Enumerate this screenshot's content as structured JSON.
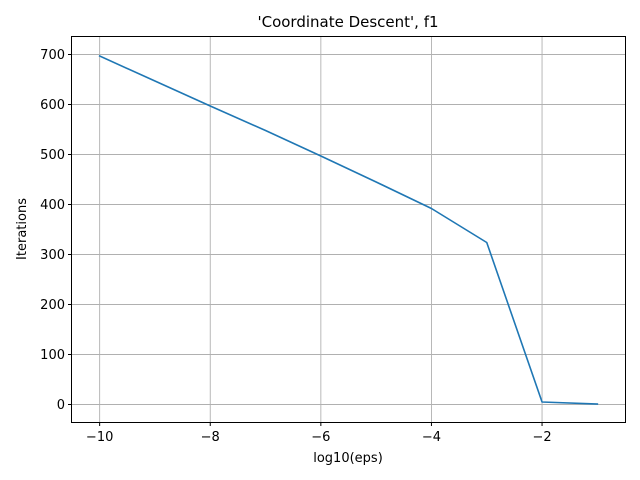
{
  "chart_data": {
    "type": "line",
    "title": "'Coordinate Descent', f1",
    "xlabel": "log10(eps)",
    "ylabel": "Iterations",
    "xlim": [
      -10.5,
      -0.5
    ],
    "ylim": [
      -35,
      735
    ],
    "x_ticks": [
      -10,
      -8,
      -6,
      -4,
      -2
    ],
    "y_ticks": [
      0,
      100,
      200,
      300,
      400,
      500,
      600,
      700
    ],
    "grid": true,
    "series": [
      {
        "color": "#1f77b4",
        "x": [
          -10,
          -9,
          -8,
          -7,
          -6,
          -5,
          -4,
          -3,
          -2,
          -1
        ],
        "y": [
          697,
          647,
          597,
          548,
          497,
          445,
          392,
          324,
          5,
          1
        ]
      }
    ]
  }
}
